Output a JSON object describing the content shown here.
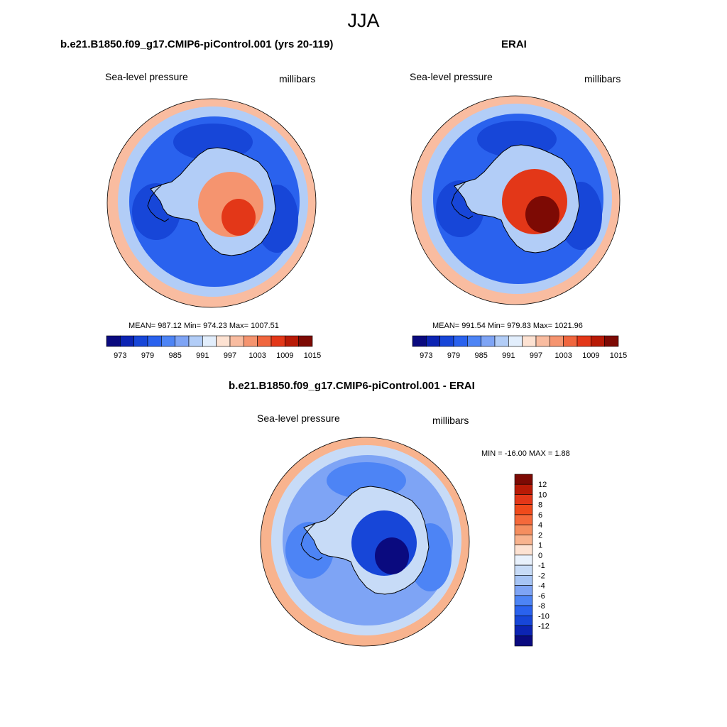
{
  "figure": {
    "season": "JJA",
    "variable": "Sea-level pressure",
    "units": "millibars"
  },
  "panels": {
    "model": {
      "title": "b.e21.B1850.f09_g17.CMIP6-piControl.001 (yrs 20-119)",
      "left_label": "Sea-level pressure",
      "right_label": "millibars",
      "stats": "MEAN= 987.12  Min= 974.23  Max= 1007.51"
    },
    "obs": {
      "title": "ERAI",
      "left_label": "Sea-level pressure",
      "right_label": "millibars",
      "stats": "MEAN= 991.54  Min= 979.83  Max= 1021.96"
    },
    "diff": {
      "title": "b.e21.B1850.f09_g17.CMIP6-piControl.001 - ERAI",
      "left_label": "Sea-level pressure",
      "right_label": "millibars",
      "stats": "MIN = -16.00 MAX =   1.88"
    }
  },
  "colorbars": {
    "abs_colors": [
      "#0a0a7f",
      "#0c24b3",
      "#1746d8",
      "#2a62ee",
      "#4d84f5",
      "#7ea4f5",
      "#b2cdf7",
      "#e2eefc",
      "#fde2d2",
      "#f9bca0",
      "#f5946f",
      "#f0663e",
      "#e33718",
      "#b81a06",
      "#7d0a04"
    ],
    "abs_labels": [
      "973",
      "979",
      "985",
      "991",
      "997",
      "1003",
      "1009",
      "1015"
    ],
    "diff_colors": [
      "#7d0a04",
      "#b81a06",
      "#e33718",
      "#f04a1b",
      "#f5693a",
      "#f58e5f",
      "#f8b38e",
      "#fde2d2",
      "#e8f1fc",
      "#c7dbf7",
      "#a6c4f5",
      "#7ea4f5",
      "#4d84f5",
      "#2a62ee",
      "#1746d8",
      "#0c24b3",
      "#0a0a7f"
    ],
    "diff_labels": [
      "12",
      "10",
      "8",
      "6",
      "4",
      "2",
      "1",
      "0",
      "-1",
      "-2",
      "-4",
      "-6",
      "-8",
      "-10",
      "-12"
    ]
  },
  "style": {
    "land_outline": "#000000",
    "model_colors": {
      "ocean": "#2a62ee",
      "ring": "#b2cdf7",
      "edge": "#f9bca0",
      "lowcore": "#1746d8",
      "plateau": "#f5946f",
      "plateau_core": "#e33718"
    },
    "obs_colors": {
      "ocean": "#2a62ee",
      "ring": "#b2cdf7",
      "edge": "#f9bca0",
      "lowcore": "#1746d8",
      "plateau": "#e33718",
      "plateau_core": "#7d0a04"
    },
    "diff_colors": {
      "ocean": "#7ea4f5",
      "ring": "#c7dbf7",
      "edge": "#f8b38e",
      "lowcore": "#4d84f5",
      "plateau": "#1746d8",
      "plateau_core": "#0a0a7f"
    }
  }
}
